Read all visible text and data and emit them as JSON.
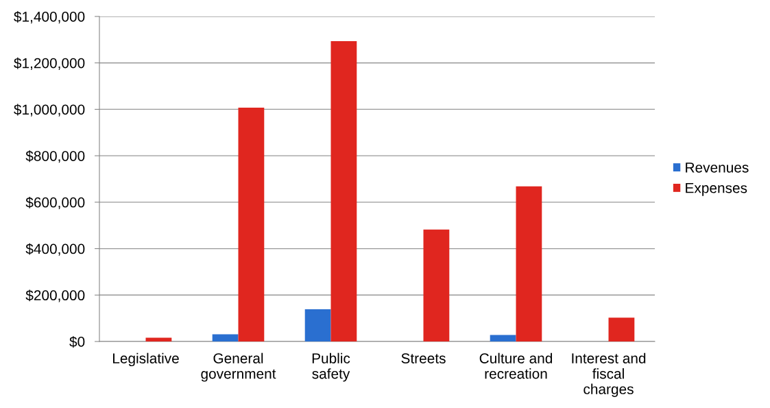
{
  "chart_data": {
    "type": "bar",
    "categories": [
      "Legislative",
      "General\ngovernment",
      "Public\nsafety",
      "Streets",
      "Culture and\nrecreation",
      "Interest and\nfiscal\ncharges"
    ],
    "series": [
      {
        "name": "Revenues",
        "color": "#2a6fd0",
        "values": [
          0,
          31000,
          139000,
          0,
          28000,
          0
        ]
      },
      {
        "name": "Expenses",
        "color": "#e0261f",
        "values": [
          16000,
          1007000,
          1294000,
          482000,
          668000,
          103000
        ]
      }
    ],
    "ylim": [
      0,
      1400000
    ],
    "yticks": [
      {
        "value": 0,
        "label": "$0"
      },
      {
        "value": 200000,
        "label": "$200,000"
      },
      {
        "value": 400000,
        "label": "$400,000"
      },
      {
        "value": 600000,
        "label": "$600,000"
      },
      {
        "value": 800000,
        "label": "$800,000"
      },
      {
        "value": 1000000,
        "label": "$1,000,000"
      },
      {
        "value": 1200000,
        "label": "$1,200,000"
      },
      {
        "value": 1400000,
        "label": "$1,400,000"
      }
    ],
    "grid": "y",
    "legend": "right"
  }
}
